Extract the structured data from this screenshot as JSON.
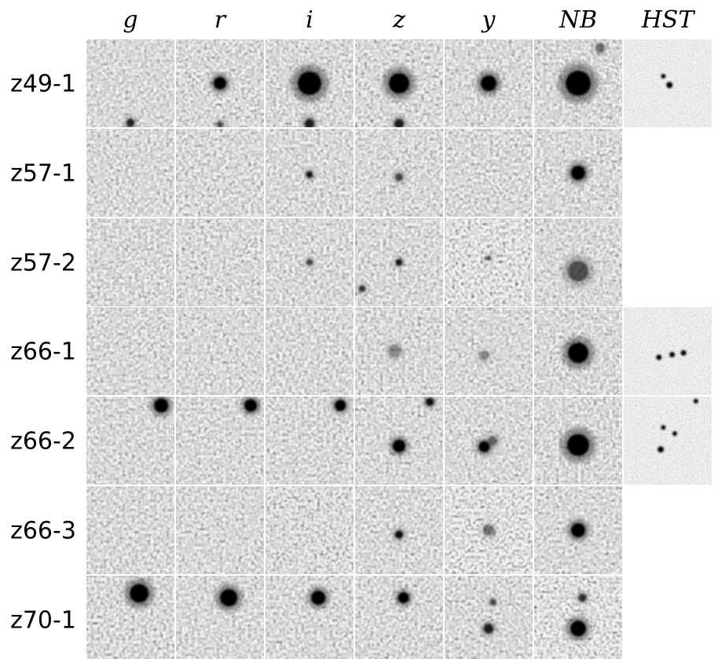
{
  "columns": [
    "g",
    "r",
    "i",
    "z",
    "y",
    "NB",
    "HST"
  ],
  "rows": [
    "z49-1",
    "z57-1",
    "z57-2",
    "z66-1",
    "z66-2",
    "z66-3",
    "z70-1"
  ]
}
